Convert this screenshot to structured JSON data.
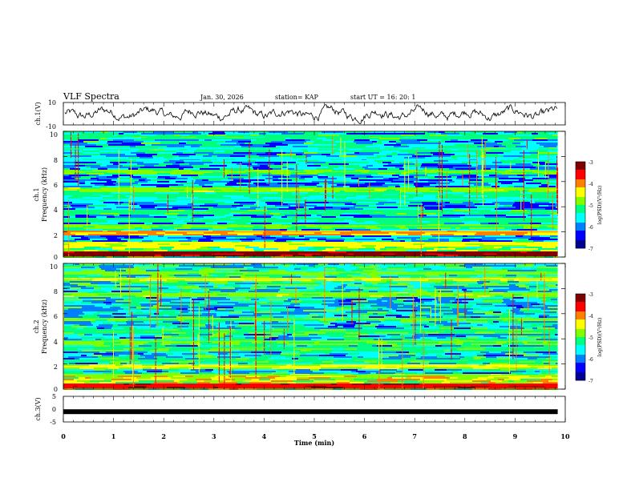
{
  "header": {
    "title": "VLF Spectra",
    "date": "Jan. 30, 2026",
    "station": "station= KAP",
    "start": "start  UT =   16: 20: 1"
  },
  "chart_data": [
    {
      "type": "line",
      "name": "ch1-voltage",
      "ylabel": "ch.1(V)",
      "ylim": [
        -10,
        10
      ],
      "yticks": [
        "10",
        "-10"
      ],
      "description_values": {
        "approx_range": [
          -9,
          8
        ]
      }
    },
    {
      "type": "heatmap",
      "name": "ch1-spectrogram",
      "ylabel": "Frequency (kHz)",
      "ylabel_top": "ch.1",
      "ylim": [
        0,
        10
      ],
      "yticks": [
        "10",
        "8",
        "6",
        "4",
        "2",
        "0"
      ],
      "bands_kHz": [
        {
          "f": 0.3,
          "level": -3.2
        },
        {
          "f": 1.1,
          "level": -4.5
        },
        {
          "f": 2.0,
          "level": -4.2
        },
        {
          "f": 2.5,
          "level": -5.0
        },
        {
          "f": 3.0,
          "level": -5.3
        },
        {
          "f": 3.6,
          "level": -5.2
        },
        {
          "f": 4.6,
          "level": -5.4
        },
        {
          "f": 5.0,
          "level": -5.3
        },
        {
          "f": 5.4,
          "level": -4.8
        },
        {
          "f": 6.8,
          "level": -5.0
        },
        {
          "f": 7.8,
          "level": -5.6
        },
        {
          "f": 8.6,
          "level": -5.4
        },
        {
          "f": 9.6,
          "level": -5.2
        }
      ]
    },
    {
      "type": "heatmap",
      "name": "ch2-spectrogram",
      "ylabel": "Frequency (kHz)",
      "ylabel_top": "ch.2",
      "ylim": [
        0,
        10
      ],
      "yticks": [
        "10",
        "8",
        "6",
        "4",
        "2",
        "0"
      ],
      "bands_kHz": [
        {
          "f": 0.3,
          "level": -3.5
        },
        {
          "f": 1.1,
          "level": -4.8
        },
        {
          "f": 1.8,
          "level": -4.6
        },
        {
          "f": 2.3,
          "level": -5.1
        },
        {
          "f": 3.3,
          "level": -5.2
        },
        {
          "f": 3.8,
          "level": -5.0
        },
        {
          "f": 4.6,
          "level": -5.1
        },
        {
          "f": 5.6,
          "level": -5.0
        },
        {
          "f": 7.6,
          "level": -4.8
        },
        {
          "f": 8.8,
          "level": -4.6
        },
        {
          "f": 9.3,
          "level": -4.9
        }
      ]
    },
    {
      "type": "line",
      "name": "ch3-voltage",
      "ylabel": "ch.3(V)",
      "ylim": [
        -5,
        5
      ],
      "yticks": [
        "5",
        "0",
        "-5"
      ],
      "level_V": -1
    }
  ],
  "xaxis": {
    "label": "Time  (min)",
    "range": [
      0,
      10
    ],
    "ticks": [
      "0",
      "1",
      "2",
      "3",
      "4",
      "5",
      "6",
      "7",
      "8",
      "9",
      "10"
    ],
    "data_extent": 9.85
  },
  "colorbar": {
    "label": "log(PSD)(V²/Hz)",
    "range": [
      -7,
      -3
    ],
    "ticks": [
      "-3",
      "-4",
      "-5",
      "-6",
      "-7"
    ]
  },
  "colors": {
    "scale": [
      "#000090",
      "#0000ff",
      "#0080ff",
      "#00ffff",
      "#00ff80",
      "#80ff00",
      "#ffff00",
      "#ff8000",
      "#ff0000",
      "#800000"
    ]
  }
}
